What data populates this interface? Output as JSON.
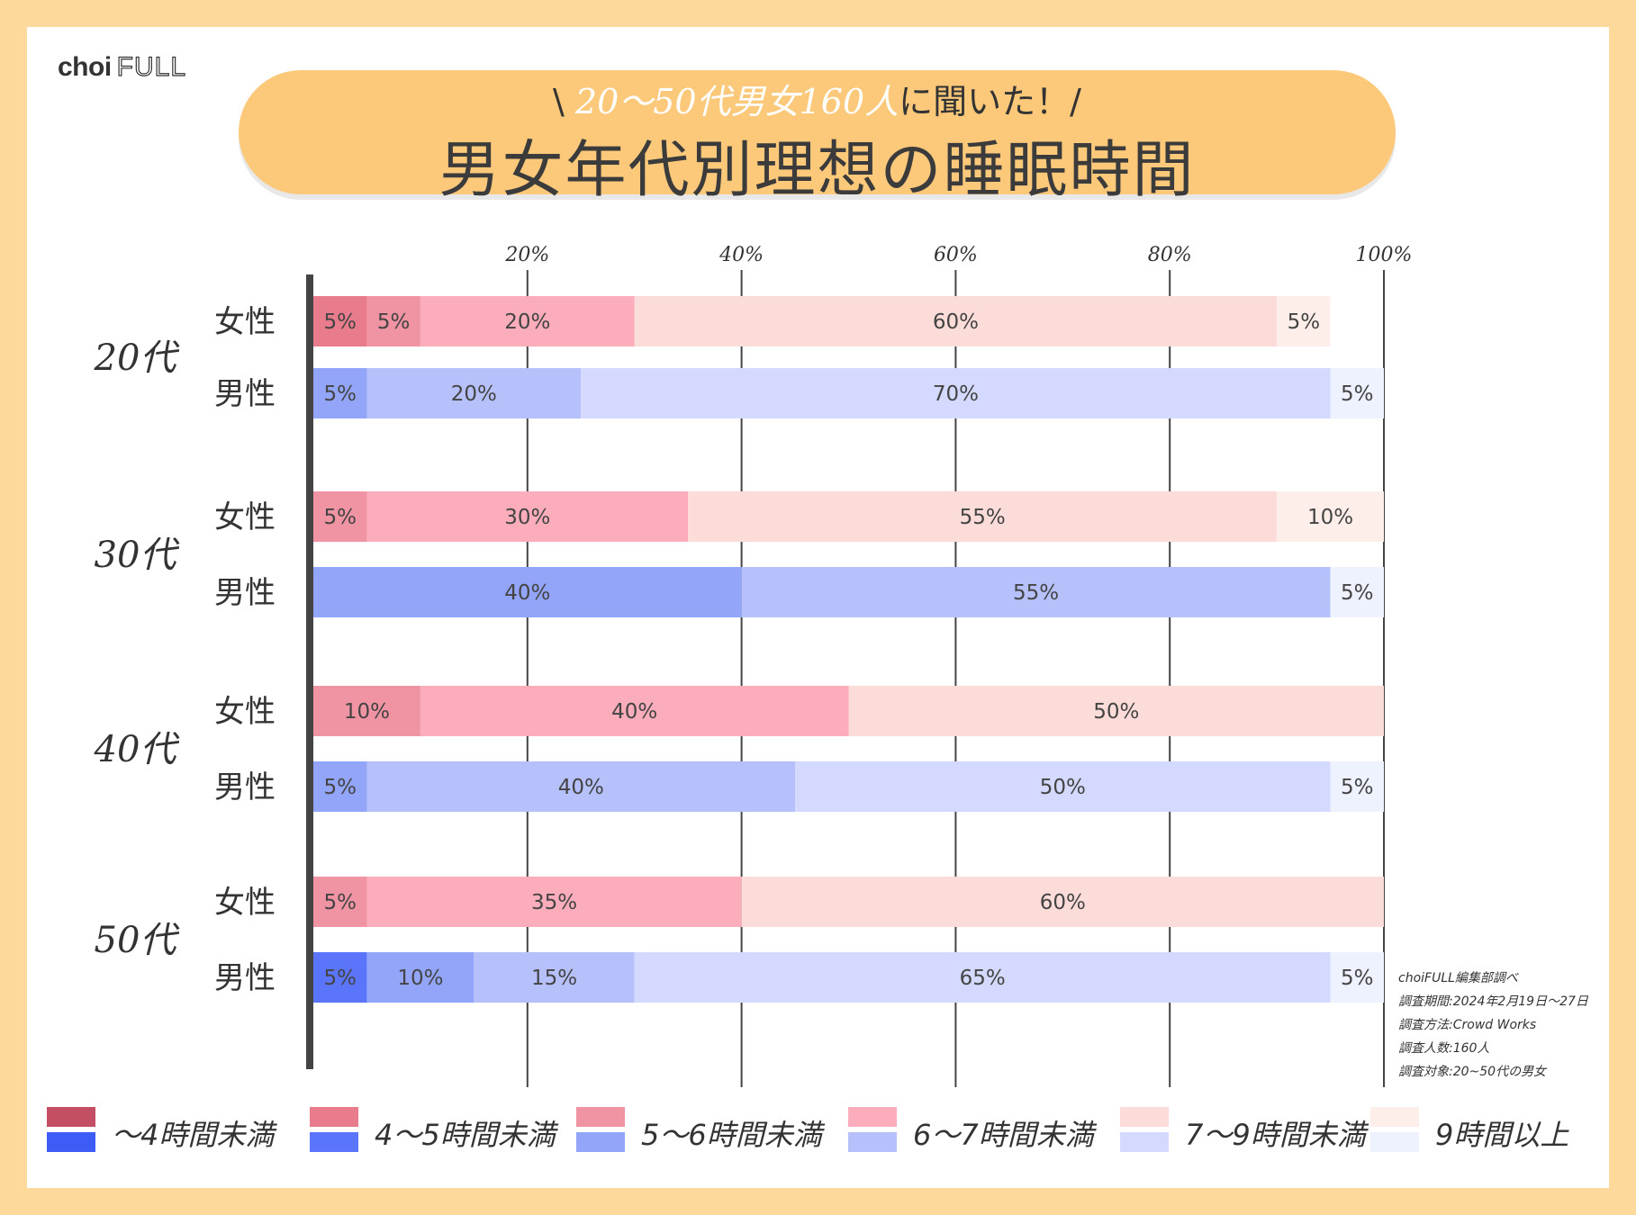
{
  "brand": {
    "logo_choi": "choi",
    "logo_full": "FULL"
  },
  "header": {
    "subtitle_pre": "\\ ",
    "subtitle_highlight": "20〜50代男女160人",
    "subtitle_post": "に聞いた！/",
    "title": "男女年代別理想の睡眠時間"
  },
  "notes": [
    "choiFULL編集部調べ",
    "調査期間:2024年2月19日〜27日",
    "調査方法:Crowd Works",
    "調査人数:160人",
    "調査対象:20~50代の男女"
  ],
  "colors": {
    "female": [
      "#c44e64",
      "#e87b8c",
      "#f093a3",
      "#fbadbb",
      "#fcdcd8",
      "#fdeeea"
    ],
    "male": [
      "#3d5bf5",
      "#5b75fa",
      "#93a5f9",
      "#b6c1fb",
      "#d4daff",
      "#eef1fe"
    ]
  },
  "chart_data": {
    "type": "stacked-bar-horizontal",
    "title": "男女年代別理想の睡眠時間",
    "x_ticks": [
      "20%",
      "40%",
      "60%",
      "80%",
      "100%"
    ],
    "xlim": [
      0,
      100
    ],
    "categories": [
      "〜4時間未満",
      "4〜5時間未満",
      "5〜6時間未満",
      "6〜7時間未満",
      "7〜9時間未満",
      "9時間以上"
    ],
    "groups": [
      {
        "age": "20代",
        "rows": [
          {
            "sex": "女性",
            "gender": "female",
            "values": [
              0,
              5,
              5,
              20,
              60,
              5
            ]
          },
          {
            "sex": "男性",
            "gender": "male",
            "values": [
              0,
              0,
              5,
              20,
              70,
              5
            ]
          }
        ]
      },
      {
        "age": "30代",
        "rows": [
          {
            "sex": "女性",
            "gender": "female",
            "values": [
              0,
              0,
              5,
              30,
              55,
              10
            ]
          },
          {
            "sex": "男性",
            "gender": "male",
            "values": [
              0,
              0,
              40,
              55,
              0,
              5
            ]
          }
        ]
      },
      {
        "age": "40代",
        "rows": [
          {
            "sex": "女性",
            "gender": "female",
            "values": [
              0,
              0,
              10,
              40,
              50,
              0
            ]
          },
          {
            "sex": "男性",
            "gender": "male",
            "values": [
              0,
              0,
              5,
              40,
              50,
              5
            ]
          }
        ]
      },
      {
        "age": "50代",
        "rows": [
          {
            "sex": "女性",
            "gender": "female",
            "values": [
              0,
              0,
              5,
              35,
              60,
              0
            ]
          },
          {
            "sex": "男性",
            "gender": "male",
            "values": [
              0,
              5,
              10,
              15,
              65,
              5
            ]
          }
        ]
      }
    ]
  }
}
